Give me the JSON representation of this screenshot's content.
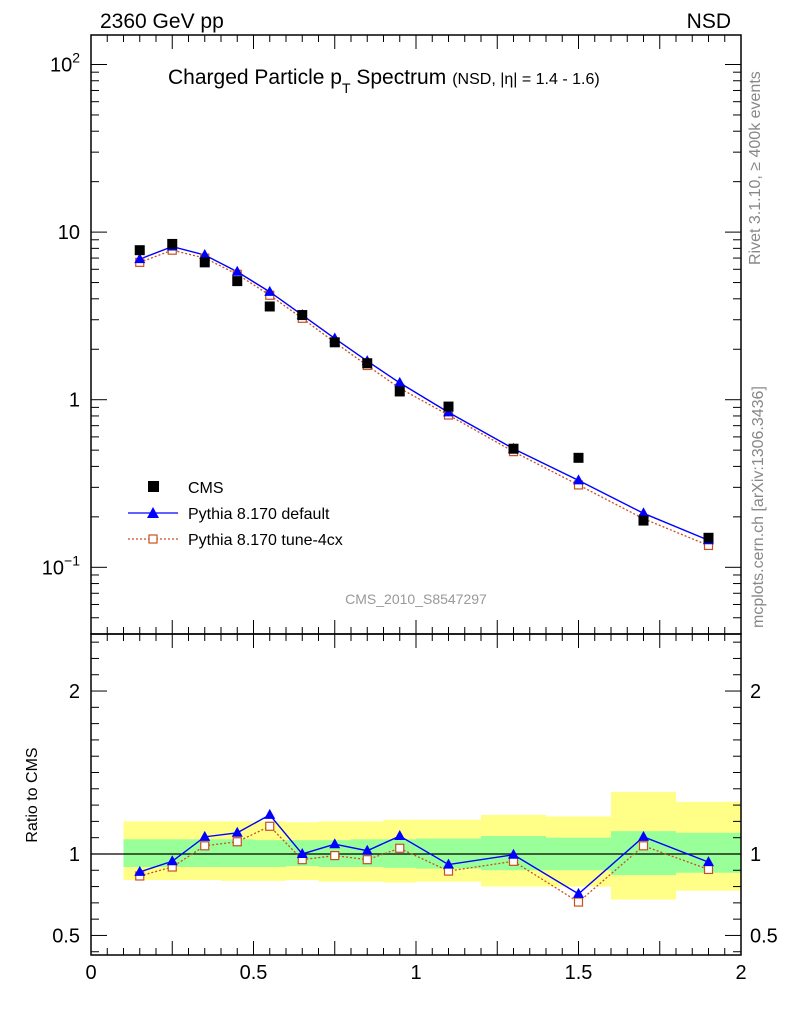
{
  "header": {
    "energy_label": "2360 GeV pp",
    "process_label": "NSD"
  },
  "side_labels": {
    "rivet": "Rivet 3.1.10, ≥ 400k events",
    "mcplots": "mcplots.cern.ch [arXiv:1306.3436]"
  },
  "chart_data": [
    {
      "type": "scatter",
      "scale": "log",
      "title_main": "Charged Particle p",
      "title_sub": "T",
      "title_main2": " Spectrum",
      "title_qual": "(NSD, |η| = 1.4 - 1.6)",
      "watermark": "CMS_2010_S8547297",
      "xlim": [
        0,
        2
      ],
      "ylim": [
        0.04,
        150
      ],
      "y_ticks": [
        {
          "value": 100,
          "base": "10",
          "exp": "2"
        },
        {
          "value": 10,
          "base": "10",
          "exp": ""
        },
        {
          "value": 1,
          "base": "1",
          "exp": ""
        },
        {
          "value": 0.1,
          "base": "10",
          "exp": "−1"
        }
      ],
      "x": [
        0.15,
        0.25,
        0.35,
        0.45,
        0.55,
        0.65,
        0.75,
        0.85,
        0.95,
        1.1,
        1.3,
        1.5,
        1.7,
        1.9
      ],
      "series": [
        {
          "name": "CMS",
          "marker": "square",
          "color": "#000000",
          "values": [
            7.8,
            8.5,
            6.6,
            5.1,
            3.6,
            3.2,
            2.2,
            1.65,
            1.12,
            0.91,
            0.51,
            0.45,
            0.19,
            0.15
          ]
        },
        {
          "name": "Pythia 8.170 default",
          "marker": "triangle",
          "color": "#0000ff",
          "values": [
            6.9,
            8.2,
            7.3,
            5.8,
            4.4,
            3.2,
            2.32,
            1.7,
            1.26,
            0.84,
            0.51,
            0.33,
            0.21,
            0.145
          ]
        },
        {
          "name": "Pythia 8.170 tune-4cx",
          "marker": "open-square",
          "color": "#c8501e",
          "values": [
            6.6,
            7.8,
            7.0,
            5.6,
            4.2,
            3.06,
            2.2,
            1.6,
            1.17,
            0.81,
            0.49,
            0.31,
            0.195,
            0.135
          ]
        }
      ]
    },
    {
      "type": "line",
      "ylabel": "Ratio to CMS",
      "xlim": [
        0,
        2
      ],
      "ylim": [
        0.38,
        2.35
      ],
      "x_ticks": [
        "0",
        "0.5",
        "1",
        "1.5",
        "2"
      ],
      "y_ticks": [
        "0.5",
        "1",
        "2"
      ],
      "x": [
        0.15,
        0.25,
        0.35,
        0.45,
        0.55,
        0.65,
        0.75,
        0.85,
        0.95,
        1.1,
        1.3,
        1.5,
        1.7,
        1.9
      ],
      "series": [
        {
          "name": "Pythia 8.170 default",
          "color": "#0000ff",
          "values": [
            0.89,
            0.955,
            1.105,
            1.13,
            1.24,
            1.0,
            1.06,
            1.02,
            1.11,
            0.935,
            0.995,
            0.755,
            1.105,
            0.95
          ]
        },
        {
          "name": "Pythia 8.170 tune-4cx",
          "color": "#c8501e",
          "values": [
            0.865,
            0.92,
            1.05,
            1.075,
            1.17,
            0.965,
            0.99,
            0.965,
            1.035,
            0.895,
            0.955,
            0.705,
            1.05,
            0.905
          ]
        }
      ],
      "bands": [
        {
          "x0": 0.1,
          "x1": 0.2,
          "inner": [
            0.92,
            1.09
          ],
          "outer": [
            0.84,
            1.2
          ]
        },
        {
          "x0": 0.2,
          "x1": 0.3,
          "inner": [
            0.92,
            1.09
          ],
          "outer": [
            0.84,
            1.2
          ]
        },
        {
          "x0": 0.3,
          "x1": 0.4,
          "inner": [
            0.92,
            1.09
          ],
          "outer": [
            0.84,
            1.2
          ]
        },
        {
          "x0": 0.4,
          "x1": 0.5,
          "inner": [
            0.92,
            1.09
          ],
          "outer": [
            0.835,
            1.2
          ]
        },
        {
          "x0": 0.5,
          "x1": 0.6,
          "inner": [
            0.92,
            1.085
          ],
          "outer": [
            0.835,
            1.2
          ]
        },
        {
          "x0": 0.6,
          "x1": 0.7,
          "inner": [
            0.925,
            1.085
          ],
          "outer": [
            0.84,
            1.195
          ]
        },
        {
          "x0": 0.7,
          "x1": 0.8,
          "inner": [
            0.92,
            1.085
          ],
          "outer": [
            0.83,
            1.2
          ]
        },
        {
          "x0": 0.8,
          "x1": 0.9,
          "inner": [
            0.92,
            1.09
          ],
          "outer": [
            0.83,
            1.2
          ]
        },
        {
          "x0": 0.9,
          "x1": 1.0,
          "inner": [
            0.915,
            1.09
          ],
          "outer": [
            0.825,
            1.21
          ]
        },
        {
          "x0": 1.0,
          "x1": 1.2,
          "inner": [
            0.91,
            1.095
          ],
          "outer": [
            0.83,
            1.21
          ]
        },
        {
          "x0": 1.2,
          "x1": 1.4,
          "inner": [
            0.9,
            1.11
          ],
          "outer": [
            0.8,
            1.24
          ]
        },
        {
          "x0": 1.4,
          "x1": 1.6,
          "inner": [
            0.9,
            1.1
          ],
          "outer": [
            0.8,
            1.23
          ]
        },
        {
          "x0": 1.6,
          "x1": 1.8,
          "inner": [
            0.87,
            1.14
          ],
          "outer": [
            0.72,
            1.38
          ]
        },
        {
          "x0": 1.8,
          "x1": 2.0,
          "inner": [
            0.885,
            1.13
          ],
          "outer": [
            0.775,
            1.32
          ]
        }
      ]
    }
  ]
}
